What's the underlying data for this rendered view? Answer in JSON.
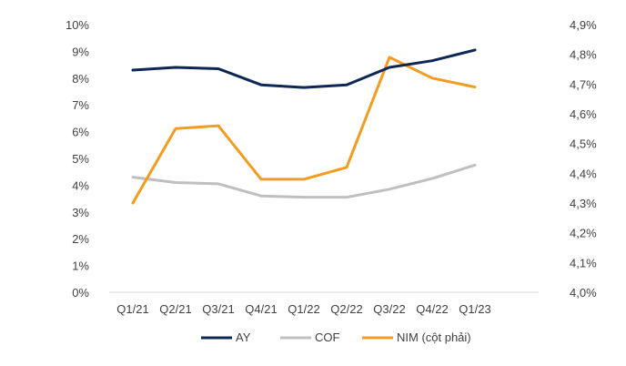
{
  "chart_data": {
    "type": "line",
    "categories": [
      "Q1/21",
      "Q2/21",
      "Q3/21",
      "Q4/21",
      "Q1/22",
      "Q2/22",
      "Q3/22",
      "Q4/22",
      "Q1/23"
    ],
    "left_axis": {
      "ylim": [
        0,
        10
      ],
      "tick_labels": [
        "0%",
        "1%",
        "2%",
        "3%",
        "4%",
        "5%",
        "6%",
        "7%",
        "8%",
        "9%",
        "10%"
      ]
    },
    "right_axis": {
      "ylim": [
        4.0,
        4.9
      ],
      "tick_labels": [
        "4,0%",
        "4,1%",
        "4,2%",
        "4,3%",
        "4,4%",
        "4,5%",
        "4,6%",
        "4,7%",
        "4,8%",
        "4,9%"
      ]
    },
    "series": [
      {
        "name": "AY",
        "axis": "left",
        "color": "#0d2756",
        "values": [
          8.3,
          8.4,
          8.35,
          7.75,
          7.65,
          7.75,
          8.4,
          8.65,
          9.05
        ]
      },
      {
        "name": "COF",
        "axis": "left",
        "color": "#bfbfbf",
        "values": [
          4.3,
          4.1,
          4.05,
          3.6,
          3.55,
          3.55,
          3.85,
          4.25,
          4.75
        ]
      },
      {
        "name": "NIM (cột phải)",
        "axis": "right",
        "color": "#f39c1f",
        "values": [
          4.3,
          4.55,
          4.56,
          4.38,
          4.38,
          4.42,
          4.79,
          4.72,
          4.69
        ]
      }
    ],
    "grid": false,
    "legend_position": "bottom"
  }
}
